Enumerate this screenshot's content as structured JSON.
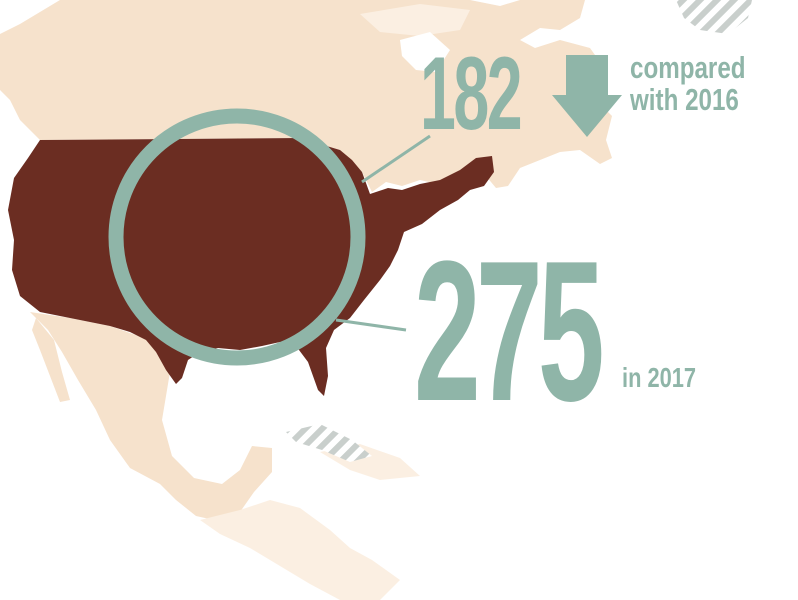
{
  "colors": {
    "land": "#f6e2cc",
    "land_light": "#fbefe2",
    "usa": "#6b2d22",
    "accent": "#8fb5a8",
    "hatch": "#c9cfcc",
    "background": "#ffffff"
  },
  "stats": {
    "previous": {
      "value": "182",
      "caption_line1": "compared",
      "caption_line2": "with 2016",
      "trend_icon": "down-arrow-icon"
    },
    "current": {
      "value": "275",
      "caption": "in 2017"
    }
  }
}
